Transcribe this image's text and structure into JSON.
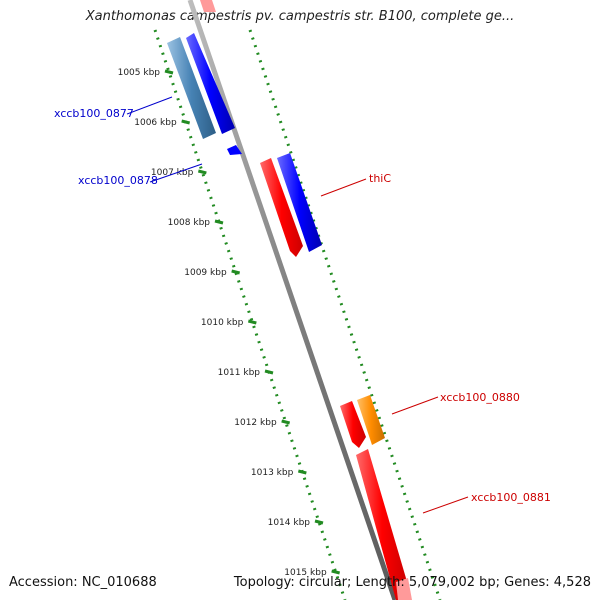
{
  "title": "Xanthomonas campestris pv. campestris str. B100, complete ge...",
  "footer": {
    "accession": "Accession: NC_010688",
    "summary": "Topology: circular; Length: 5,079,002 bp; Genes: 4,528"
  },
  "colors": {
    "backbone": "#8a8a8a",
    "ruler": "#228b22",
    "forward_cds": "#ff0000",
    "reverse_cds": "#0000ff",
    "alt_gene": "#4682b4",
    "orange_gene": "#ff8c00",
    "blue_label": "#0000cc",
    "red_label": "#cc0000"
  },
  "ruler_ticks": [
    {
      "label": "1005 kbp"
    },
    {
      "label": "1006 kbp"
    },
    {
      "label": "1007 kbp"
    },
    {
      "label": "1008 kbp"
    },
    {
      "label": "1009 kbp"
    },
    {
      "label": "1010 kbp"
    },
    {
      "label": "1011 kbp"
    },
    {
      "label": "1012 kbp"
    },
    {
      "label": "1013 kbp"
    },
    {
      "label": "1014 kbp"
    },
    {
      "label": "1015 kbp"
    }
  ],
  "gene_labels": [
    {
      "name": "xccb100_0877",
      "color": "blue"
    },
    {
      "name": "xccb100_0878",
      "color": "blue"
    },
    {
      "name": "thiC",
      "color": "red"
    },
    {
      "name": "xccb100_0880",
      "color": "red"
    },
    {
      "name": "xccb100_0881",
      "color": "red"
    }
  ]
}
